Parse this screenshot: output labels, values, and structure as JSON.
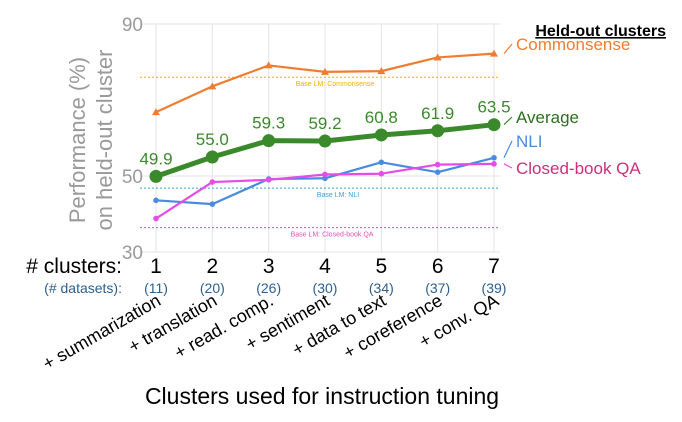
{
  "chart_data": {
    "type": "line",
    "ylabel_line1": "Performance (%)",
    "ylabel_line2": "on held-out cluster",
    "xlabel": "Clusters used for instruction tuning",
    "ylim": [
      30,
      90
    ],
    "yticks": [
      30,
      50,
      90
    ],
    "grid": true,
    "legend_title": "Held-out clusters",
    "legend_placement": "right",
    "row1_label": "# clusters:",
    "row2_label": "(# datasets):",
    "x": [
      1,
      2,
      3,
      4,
      5,
      6,
      7
    ],
    "x_tick_labels": [
      "1",
      "2",
      "3",
      "4",
      "5",
      "6",
      "7"
    ],
    "datasets": [
      "(11)",
      "(20)",
      "(26)",
      "(30)",
      "(34)",
      "(37)",
      "(39)"
    ],
    "categories": [
      "+ summarization",
      "+ translation",
      "+ read. comp.",
      "+ sentiment",
      "+ data to text",
      "+ coreference",
      "+ conv. QA"
    ],
    "series": [
      {
        "name": "Commonsense",
        "color": "#ef7d31",
        "marker": "triangle",
        "values": [
          66.8,
          73.6,
          79.1,
          77.4,
          77.6,
          81.2,
          82.2
        ]
      },
      {
        "name": "Average",
        "color": "#3a8a2b",
        "marker": "circle",
        "values": [
          49.9,
          55.0,
          59.3,
          59.2,
          60.8,
          61.9,
          63.5
        ],
        "value_labels": [
          "49.9",
          "55.0",
          "59.3",
          "59.2",
          "60.8",
          "61.9",
          "63.5"
        ]
      },
      {
        "name": "NLI",
        "color": "#4a8bdf",
        "marker": "dot",
        "values": [
          43.6,
          42.6,
          49.2,
          49.4,
          53.6,
          51.0,
          54.8
        ]
      },
      {
        "name": "Closed-book QA",
        "color": "#e64ce6",
        "marker": "dot",
        "values": [
          38.8,
          48.4,
          49.0,
          50.4,
          50.6,
          53.0,
          53.2
        ]
      }
    ],
    "baselines": [
      {
        "label": "Base LM: Commonsense",
        "value": 76.0,
        "color": "#f0b400"
      },
      {
        "label": "Base LM: NLI",
        "value": 46.8,
        "color": "#3aa0d8"
      },
      {
        "label": "Base LM: Closed-book QA",
        "value": 36.4,
        "color": "#e64cb4"
      }
    ]
  }
}
